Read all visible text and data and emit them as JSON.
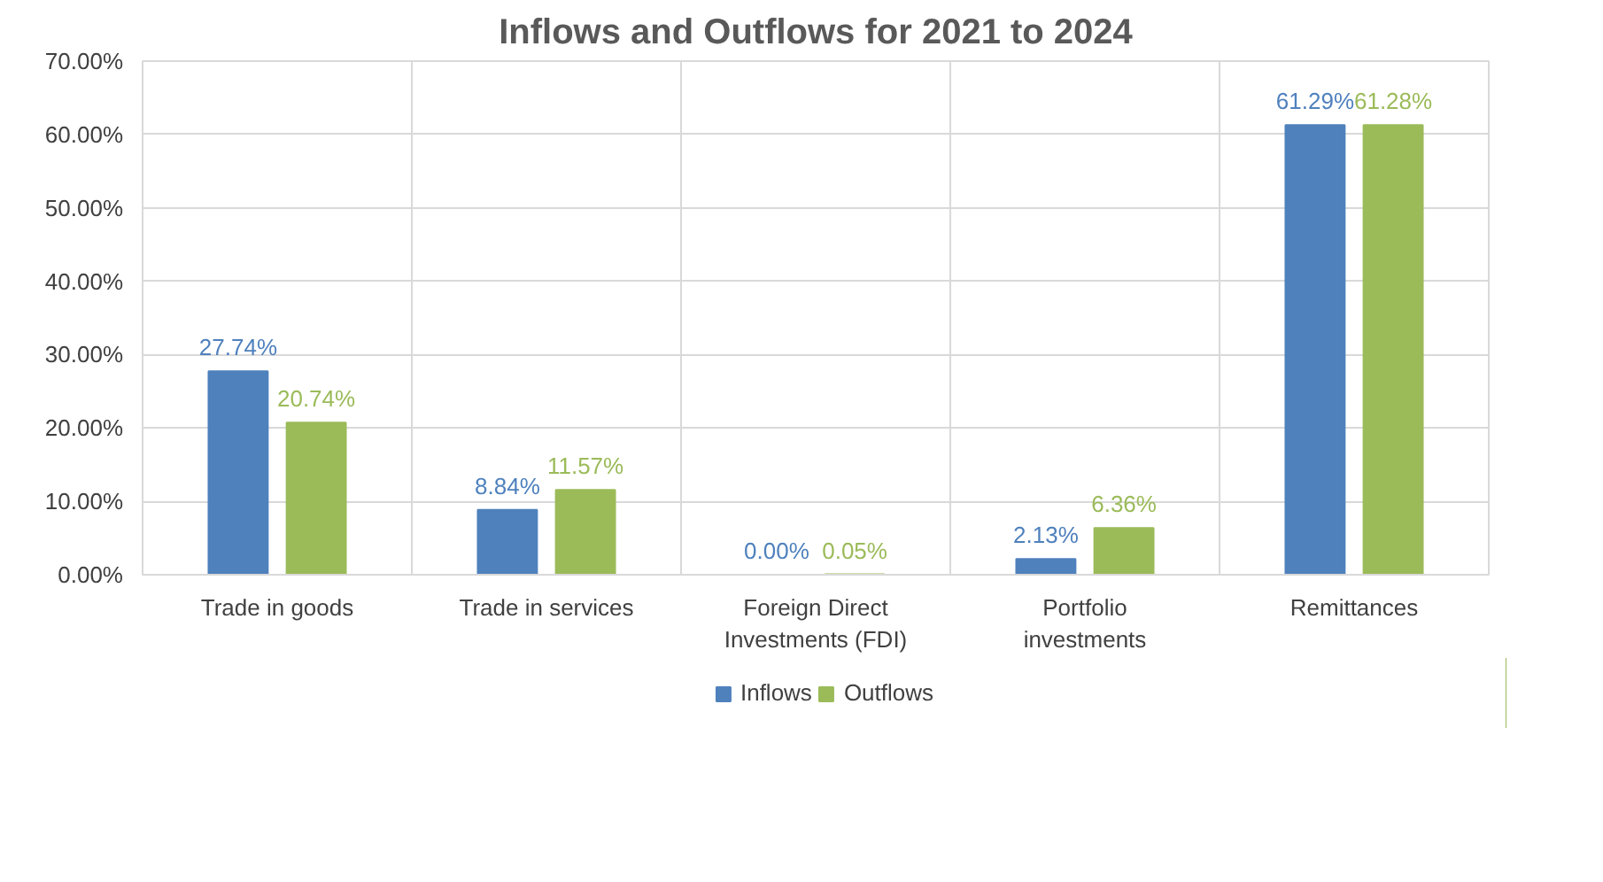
{
  "chart_data": {
    "type": "bar",
    "title": "Inflows and Outflows for 2021 to 2024",
    "categories": [
      "Trade in goods",
      "Trade in services",
      "Foreign Direct Investments (FDI)",
      "Portfolio investments",
      "Remittances"
    ],
    "series": [
      {
        "name": "Inflows",
        "color": "#4f81bd",
        "values": [
          27.74,
          8.84,
          0.0,
          2.13,
          61.29
        ],
        "value_labels": [
          "27.74%",
          "8.84%",
          "0.00%",
          "2.13%",
          "61.29%"
        ]
      },
      {
        "name": "Outflows",
        "color": "#9bbb59",
        "values": [
          20.74,
          11.57,
          0.05,
          6.36,
          61.28
        ],
        "value_labels": [
          "20.74%",
          "11.57%",
          "0.05%",
          "6.36%",
          "61.28%"
        ]
      }
    ],
    "ylim": [
      0,
      70
    ],
    "yticks": [
      {
        "value": 0,
        "label": "0.00%"
      },
      {
        "value": 10,
        "label": "10.00%"
      },
      {
        "value": 20,
        "label": "20.00%"
      },
      {
        "value": 30,
        "label": "30.00%"
      },
      {
        "value": 40,
        "label": "40.00%"
      },
      {
        "value": 50,
        "label": "50.00%"
      },
      {
        "value": 60,
        "label": "60.00%"
      },
      {
        "value": 70,
        "label": "70.00%"
      }
    ],
    "grid": true,
    "legend": "bottom"
  }
}
